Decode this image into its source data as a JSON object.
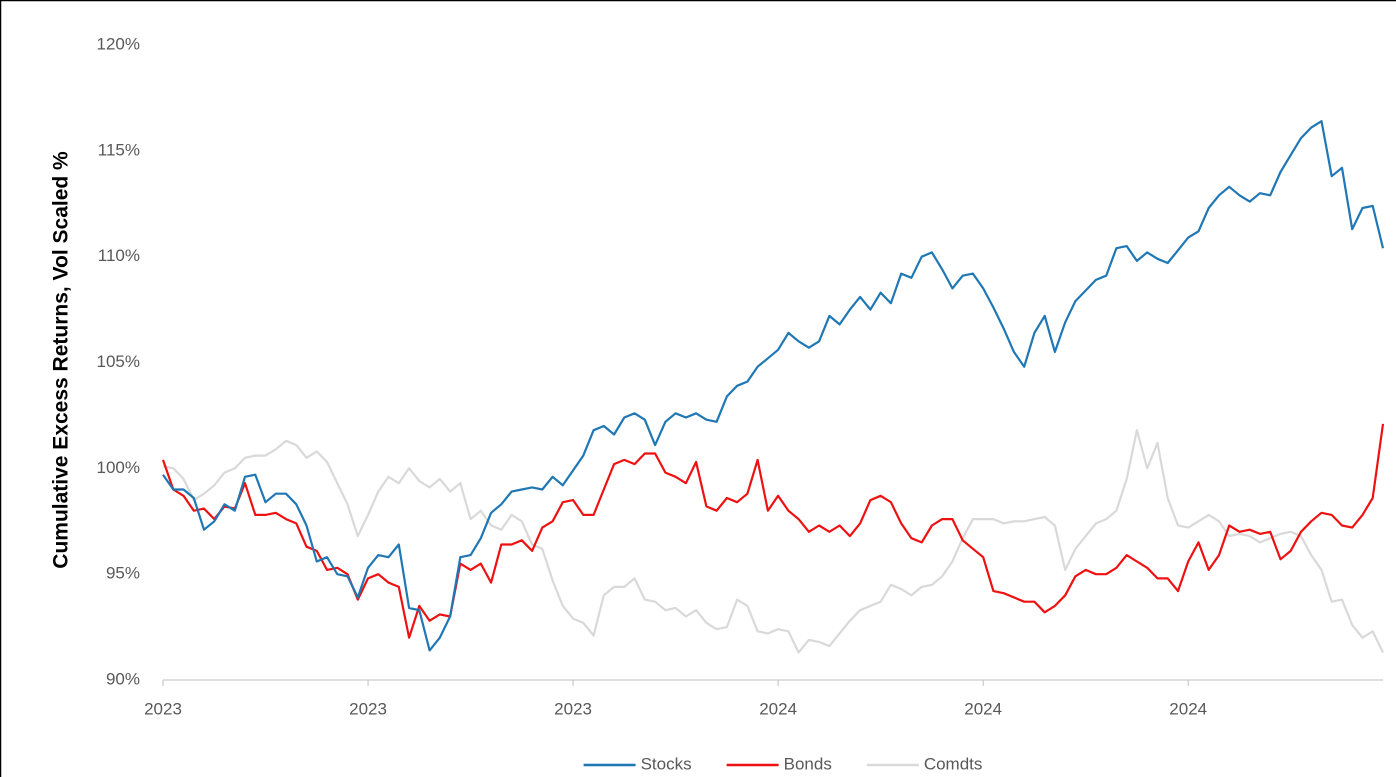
{
  "chart_data": {
    "type": "line",
    "y_label": "Cumulative Excess Returns, Vol Scaled %",
    "categories": [
      "2023",
      null,
      null,
      null,
      null,
      null,
      null,
      null,
      null,
      null,
      null,
      null,
      null,
      null,
      null,
      null,
      null,
      null,
      null,
      null,
      "2023",
      null,
      null,
      null,
      null,
      null,
      null,
      null,
      null,
      null,
      null,
      null,
      null,
      null,
      null,
      null,
      null,
      null,
      null,
      null,
      "2023",
      null,
      null,
      null,
      null,
      null,
      null,
      null,
      null,
      null,
      null,
      null,
      null,
      null,
      null,
      null,
      null,
      null,
      null,
      null,
      "2024",
      null,
      null,
      null,
      null,
      null,
      null,
      null,
      null,
      null,
      null,
      null,
      null,
      null,
      null,
      null,
      null,
      null,
      null,
      null,
      "2024",
      null,
      null,
      null,
      null,
      null,
      null,
      null,
      null,
      null,
      null,
      null,
      null,
      null,
      null,
      null,
      null,
      null,
      null,
      null,
      "2024",
      null,
      null,
      null,
      null,
      null,
      null,
      null,
      null,
      null,
      null,
      null,
      null,
      null,
      null,
      null,
      null,
      null,
      null,
      null
    ],
    "series": [
      {
        "name": "Stocks",
        "color": "#1f77b4",
        "values": [
          99.7,
          99.0,
          99.0,
          98.6,
          97.1,
          97.5,
          98.3,
          98.0,
          99.6,
          99.7,
          98.4,
          98.8,
          98.8,
          98.3,
          97.3,
          95.6,
          95.8,
          95.0,
          94.9,
          93.9,
          95.3,
          95.9,
          95.8,
          96.4,
          93.4,
          93.3,
          91.4,
          92.0,
          93.0,
          95.8,
          95.9,
          96.7,
          97.9,
          98.3,
          98.9,
          99.0,
          99.1,
          99.0,
          99.6,
          99.2,
          99.9,
          100.6,
          101.8,
          102.0,
          101.6,
          102.4,
          102.6,
          102.3,
          101.1,
          102.2,
          102.6,
          102.4,
          102.6,
          102.3,
          102.2,
          103.4,
          103.9,
          104.1,
          104.8,
          105.2,
          105.6,
          106.4,
          106.0,
          105.7,
          106.0,
          107.2,
          106.8,
          107.5,
          108.1,
          107.5,
          108.3,
          107.8,
          109.2,
          109.0,
          110.0,
          110.2,
          109.4,
          108.5,
          109.1,
          109.2,
          108.5,
          107.6,
          106.6,
          105.5,
          104.8,
          106.4,
          107.2,
          105.5,
          106.9,
          107.9,
          108.4,
          108.9,
          109.1,
          110.4,
          110.5,
          109.8,
          110.2,
          109.9,
          109.7,
          110.3,
          110.9,
          111.2,
          112.3,
          112.9,
          113.3,
          112.9,
          112.6,
          113.0,
          112.9,
          114.0,
          114.8,
          115.6,
          116.1,
          116.4,
          113.8,
          114.2,
          111.3,
          112.3,
          112.4,
          110.4
        ]
      },
      {
        "name": "Bonds",
        "color": "#ee1111",
        "values": [
          100.4,
          99.0,
          98.7,
          98.0,
          98.1,
          97.6,
          98.2,
          98.1,
          99.3,
          97.8,
          97.8,
          97.9,
          97.6,
          97.4,
          96.3,
          96.1,
          95.2,
          95.3,
          95.0,
          93.8,
          94.8,
          95.0,
          94.6,
          94.4,
          92.0,
          93.5,
          92.8,
          93.1,
          93.0,
          95.5,
          95.2,
          95.5,
          94.6,
          96.4,
          96.4,
          96.6,
          96.1,
          97.2,
          97.5,
          98.4,
          98.5,
          97.8,
          97.8,
          99.0,
          100.2,
          100.4,
          100.2,
          100.7,
          100.7,
          99.8,
          99.6,
          99.3,
          100.3,
          98.2,
          98.0,
          98.6,
          98.4,
          98.8,
          100.4,
          98.0,
          98.7,
          98.0,
          97.6,
          97.0,
          97.3,
          97.0,
          97.3,
          96.8,
          97.4,
          98.5,
          98.7,
          98.4,
          97.4,
          96.7,
          96.5,
          97.3,
          97.6,
          97.6,
          96.6,
          96.2,
          95.8,
          94.2,
          94.1,
          93.9,
          93.7,
          93.7,
          93.2,
          93.5,
          94.0,
          94.9,
          95.2,
          95.0,
          95.0,
          95.3,
          95.9,
          95.6,
          95.3,
          94.8,
          94.8,
          94.2,
          95.6,
          96.5,
          95.2,
          95.9,
          97.3,
          97.0,
          97.1,
          96.9,
          97.0,
          95.7,
          96.1,
          97.0,
          97.5,
          97.9,
          97.8,
          97.3,
          97.2,
          97.8,
          98.6,
          102.1
        ]
      },
      {
        "name": "Comdts",
        "color": "#d9d9d9",
        "values": [
          100.1,
          100.0,
          99.5,
          98.5,
          98.8,
          99.2,
          99.8,
          100.0,
          100.5,
          100.6,
          100.6,
          100.9,
          101.3,
          101.1,
          100.5,
          100.8,
          100.3,
          99.3,
          98.3,
          96.8,
          97.8,
          98.9,
          99.6,
          99.3,
          100.0,
          99.4,
          99.1,
          99.5,
          98.9,
          99.3,
          97.6,
          98.0,
          97.3,
          97.1,
          97.8,
          97.5,
          96.4,
          96.2,
          94.7,
          93.5,
          92.9,
          92.7,
          92.1,
          94.0,
          94.4,
          94.4,
          94.8,
          93.8,
          93.7,
          93.3,
          93.4,
          93.0,
          93.3,
          92.7,
          92.4,
          92.5,
          93.8,
          93.5,
          92.3,
          92.2,
          92.4,
          92.3,
          91.3,
          91.9,
          91.8,
          91.6,
          92.2,
          92.8,
          93.3,
          93.5,
          93.7,
          94.5,
          94.3,
          94.0,
          94.4,
          94.5,
          94.9,
          95.6,
          96.7,
          97.6,
          97.6,
          97.6,
          97.4,
          97.5,
          97.5,
          97.6,
          97.7,
          97.3,
          95.2,
          96.2,
          96.8,
          97.4,
          97.6,
          98.0,
          99.5,
          101.8,
          100.0,
          101.2,
          98.6,
          97.3,
          97.2,
          97.5,
          97.8,
          97.5,
          96.8,
          96.9,
          96.8,
          96.5,
          96.7,
          96.9,
          97.0,
          96.8,
          95.9,
          95.2,
          93.7,
          93.8,
          92.6,
          92.0,
          92.3,
          91.3
        ]
      }
    ],
    "ylim": [
      90,
      120
    ],
    "yticks": [
      {
        "value": 90,
        "label": "90%"
      },
      {
        "value": 95,
        "label": "95%"
      },
      {
        "value": 100,
        "label": "100%"
      },
      {
        "value": 105,
        "label": "105%"
      },
      {
        "value": 110,
        "label": "110%"
      },
      {
        "value": 115,
        "label": "115%"
      },
      {
        "value": 120,
        "label": "120%"
      }
    ],
    "grid": false,
    "legend": "bottom"
  }
}
